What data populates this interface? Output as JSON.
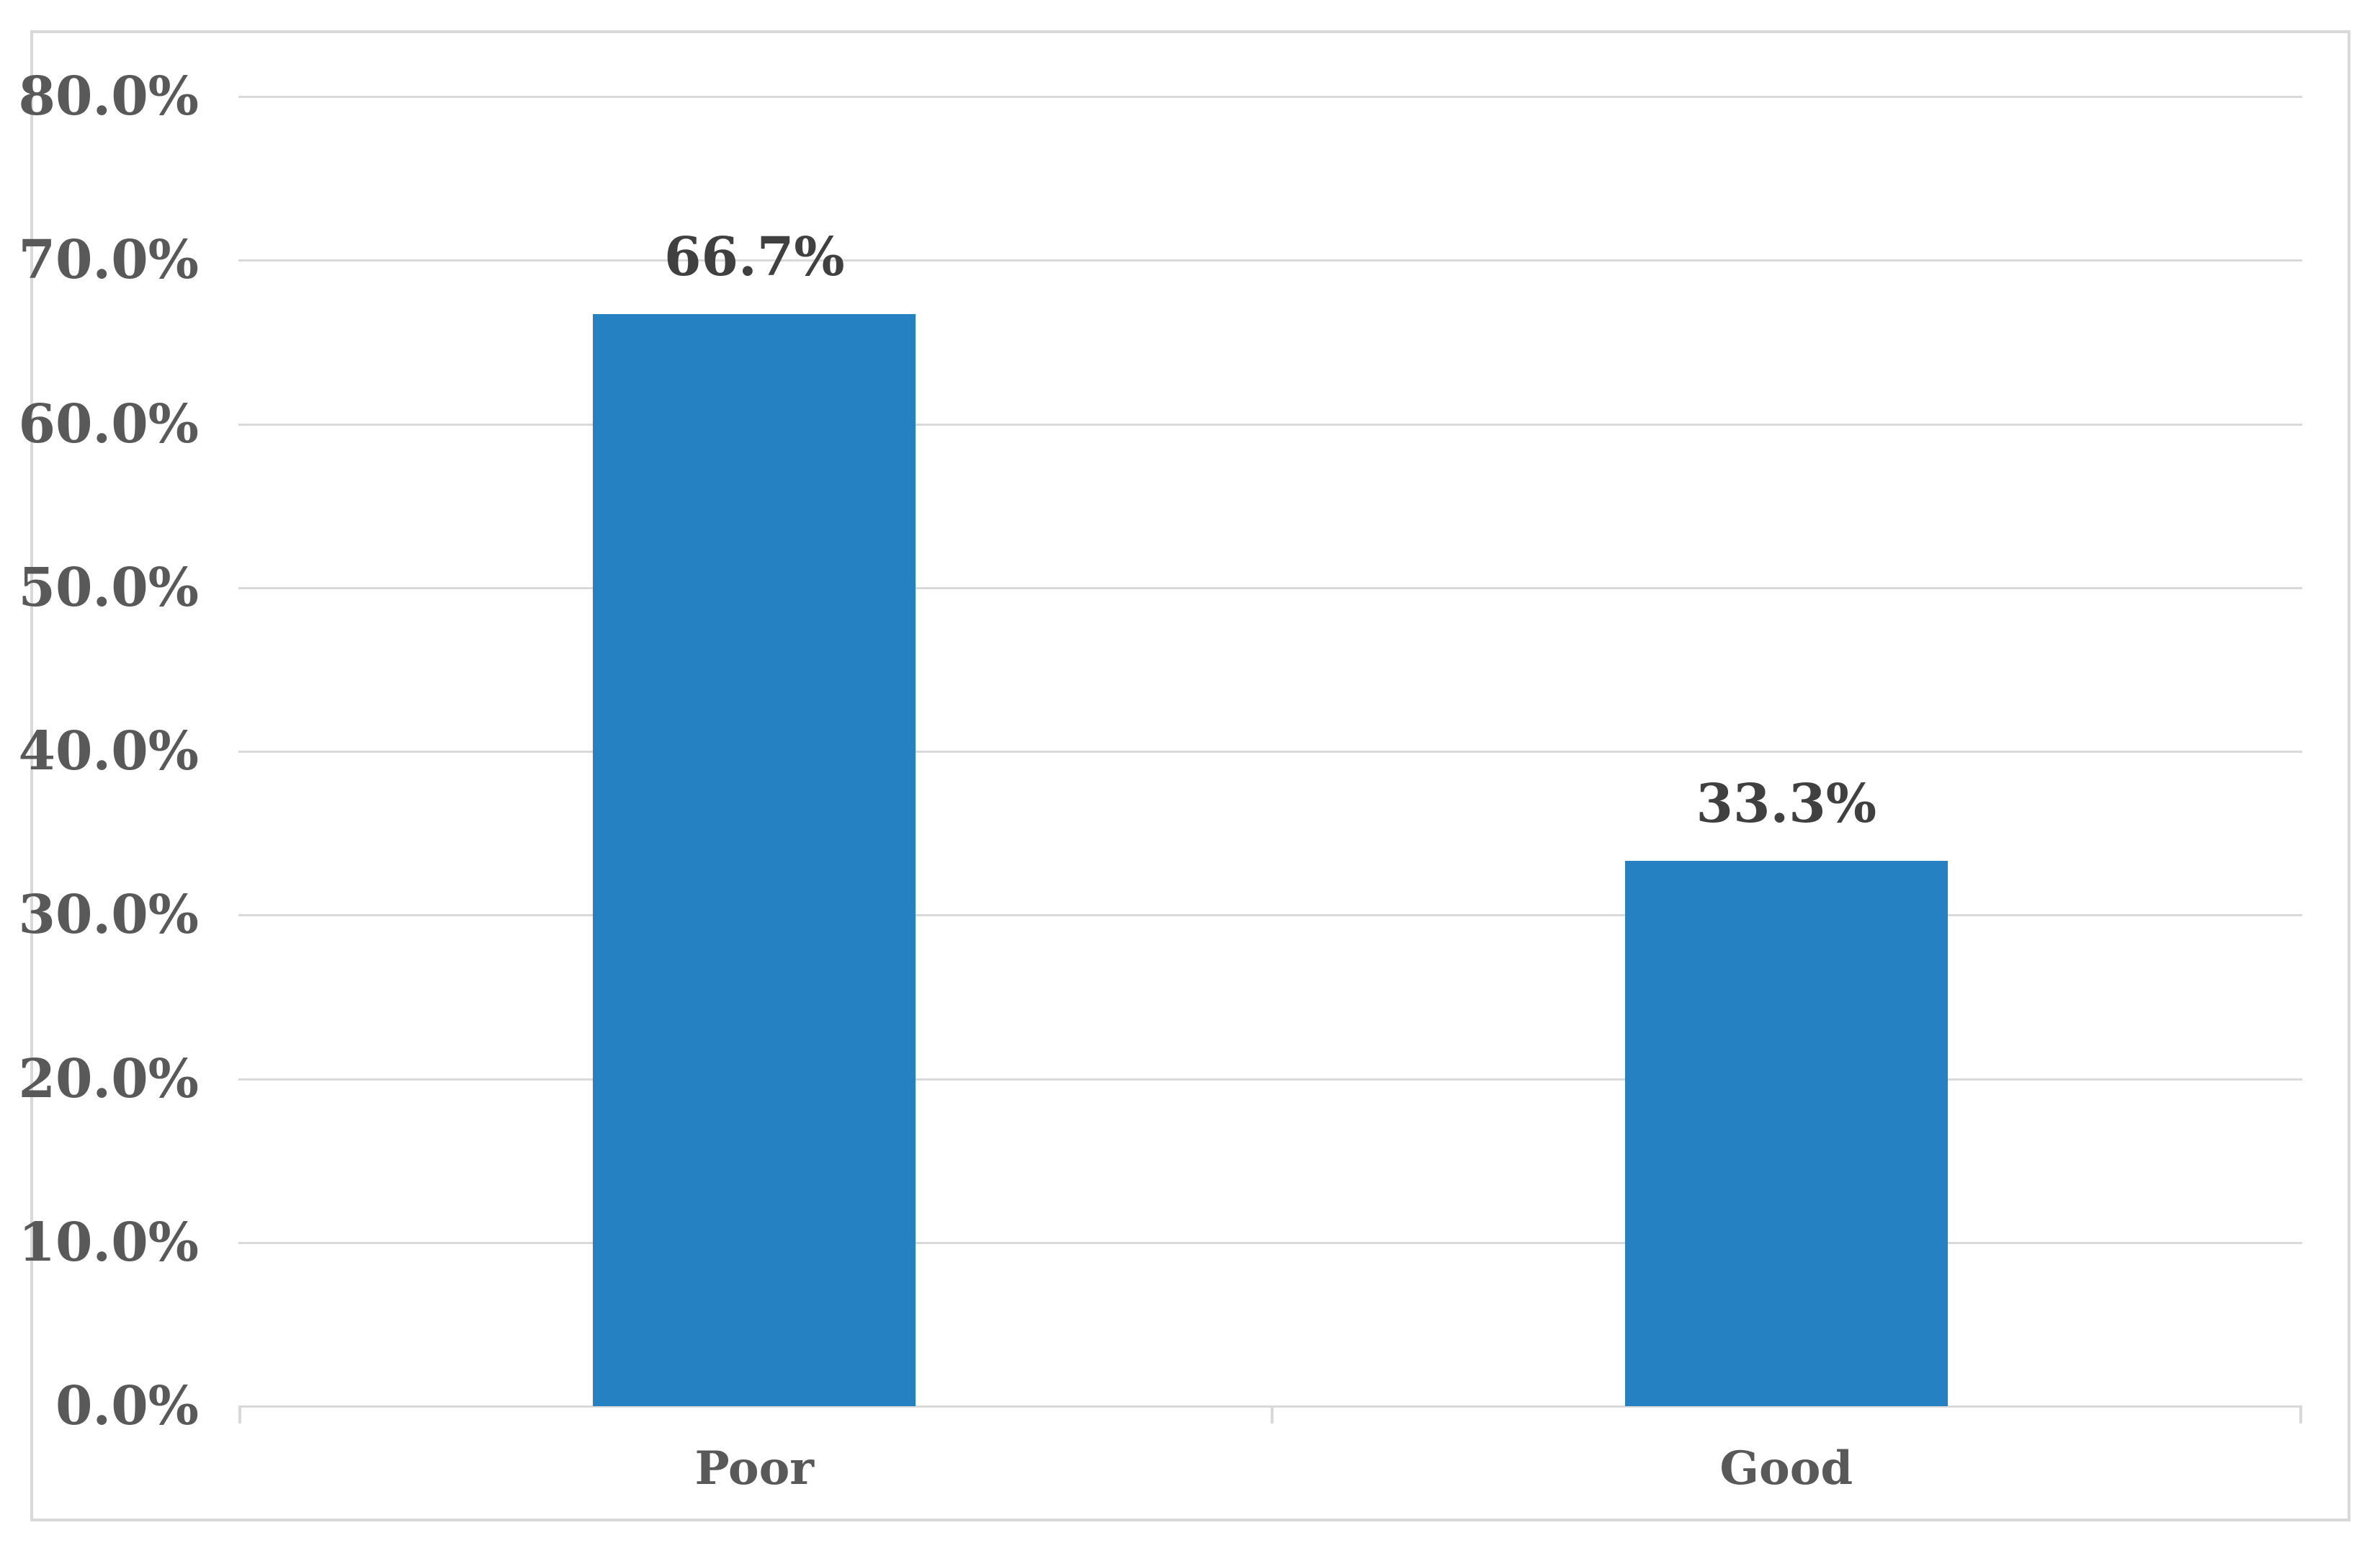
{
  "chart_data": {
    "type": "bar",
    "categories": [
      "Poor",
      "Good"
    ],
    "values": [
      66.7,
      33.3
    ],
    "data_labels": [
      "66.7%",
      "33.3%"
    ],
    "y_tick_labels": [
      "80.0%",
      "70.0%",
      "60.0%",
      "50.0%",
      "40.0%",
      "30.0%",
      "20.0%",
      "10.0%",
      "0.0%"
    ],
    "title": "",
    "xlabel": "",
    "ylabel": "",
    "ylim": [
      0,
      80
    ],
    "y_step": 10,
    "grid": true,
    "legend": false,
    "colors": {
      "bar_fill": "#2581C1",
      "gridline": "#D9D9D9",
      "frame_border": "#D9D9D9",
      "axis_text": "#595959",
      "data_label_text": "#404040",
      "background": "#FFFFFF"
    }
  }
}
